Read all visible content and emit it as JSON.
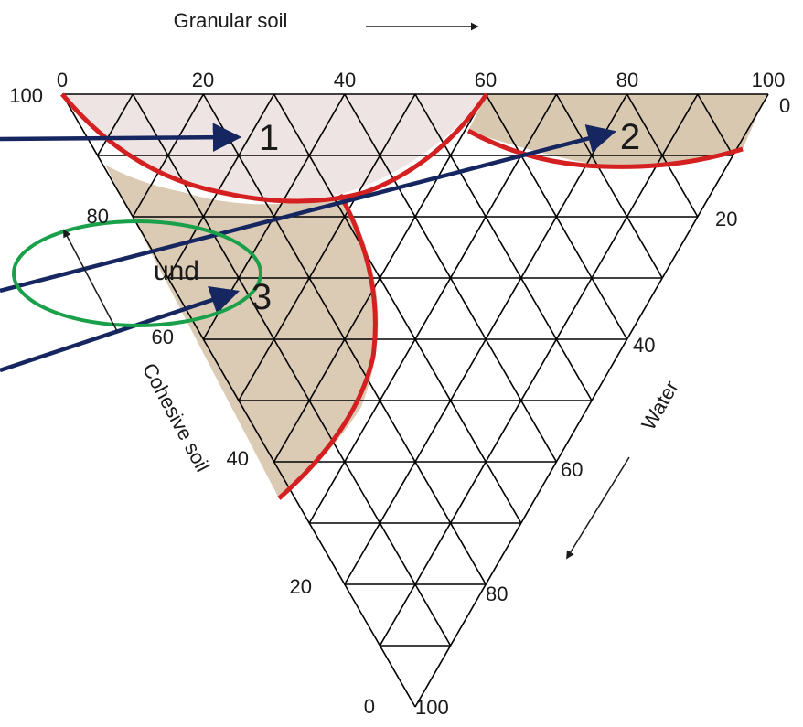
{
  "diagram": {
    "axes": {
      "granular": {
        "label": "Granular soil",
        "ticks": [
          "0",
          "20",
          "40",
          "60",
          "80",
          "100"
        ]
      },
      "water": {
        "label": "Water",
        "ticks": [
          "0",
          "20",
          "40",
          "60",
          "80",
          "100"
        ]
      },
      "cohesive": {
        "label": "Cohesive soil",
        "ticks": [
          "100",
          "80",
          "60",
          "40",
          "20",
          "0"
        ]
      }
    },
    "regions": [
      {
        "label": "1",
        "fill": "#eee4e4"
      },
      {
        "label": "2",
        "fill": "#d8c8b0"
      },
      {
        "label": "3",
        "fill": "#dccbb4"
      }
    ],
    "clipped_label": "und",
    "colors": {
      "boundary": "#d42020",
      "arrow": "#152660",
      "ellipse": "#1aa04a",
      "grid": "#000000"
    }
  }
}
